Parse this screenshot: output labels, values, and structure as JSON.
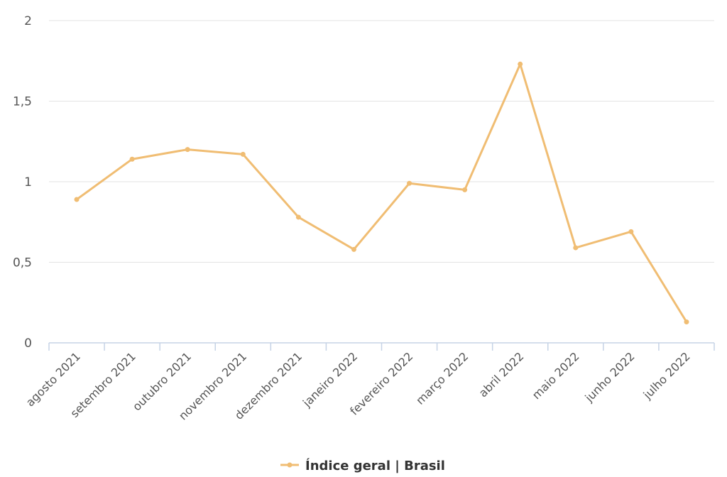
{
  "chart_data": {
    "type": "line",
    "title": "",
    "xlabel": "",
    "ylabel": "",
    "categories": [
      "agosto 2021",
      "setembro 2021",
      "outubro 2021",
      "novembro 2021",
      "dezembro 2021",
      "janeiro 2022",
      "fevereiro 2022",
      "março 2022",
      "abril 2022",
      "maio 2022",
      "junho 2022",
      "julho 2022"
    ],
    "series": [
      {
        "name": "Índice geral | Brasil",
        "color": "#f0bd73",
        "values": [
          0.89,
          1.14,
          1.2,
          1.17,
          0.78,
          0.58,
          0.99,
          0.95,
          1.73,
          0.59,
          0.69,
          0.13
        ]
      }
    ],
    "ylim": [
      0,
      2
    ],
    "yticks": [
      0,
      0.5,
      1,
      1.5,
      2
    ],
    "ytick_labels": [
      "0",
      "0,5",
      "1",
      "1,5",
      "2"
    ],
    "grid": true,
    "legend_position": "bottom-center"
  }
}
